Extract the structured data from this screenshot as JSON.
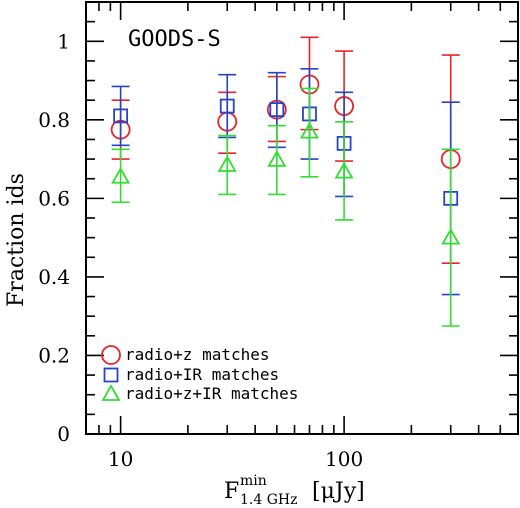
{
  "chart_data": {
    "type": "scatter",
    "title": "GOODS-S",
    "xlabel": {
      "main": "F",
      "sup": "min",
      "sub": "1.4 GHz",
      "unit": "[μJy]"
    },
    "ylabel": "Fraction ids",
    "xscale": "log",
    "xlim": [
      7,
      600
    ],
    "ylim": [
      0,
      1.1
    ],
    "xticks_major": [
      10,
      100
    ],
    "xtick_labels": [
      "10",
      "100"
    ],
    "xticks_minor": [
      8,
      9,
      20,
      30,
      40,
      50,
      60,
      70,
      80,
      90,
      200,
      300,
      400,
      500
    ],
    "yticks_major": [
      0,
      0.2,
      0.4,
      0.6,
      0.8,
      1.0
    ],
    "ytick_labels": [
      "0",
      "0.2",
      "0.4",
      "0.6",
      "0.8",
      "1"
    ],
    "yticks_minor_step": 0.05,
    "legend_position": "bottom-left",
    "series": [
      {
        "name": "radio+z matches",
        "marker": "circle",
        "color": "#e8262a",
        "points": [
          {
            "x": 10,
            "y": 0.775,
            "ylo": 0.7,
            "yhi": 0.85
          },
          {
            "x": 30,
            "y": 0.795,
            "ylo": 0.715,
            "yhi": 0.87
          },
          {
            "x": 50,
            "y": 0.826,
            "ylo": 0.745,
            "yhi": 0.91
          },
          {
            "x": 70,
            "y": 0.89,
            "ylo": 0.775,
            "yhi": 1.01
          },
          {
            "x": 100,
            "y": 0.835,
            "ylo": 0.695,
            "yhi": 0.975
          },
          {
            "x": 300,
            "y": 0.7,
            "ylo": 0.435,
            "yhi": 0.965
          }
        ]
      },
      {
        "name": "radio+IR matches",
        "marker": "square",
        "color": "#2545c8",
        "points": [
          {
            "x": 10,
            "y": 0.81,
            "ylo": 0.735,
            "yhi": 0.885
          },
          {
            "x": 30,
            "y": 0.835,
            "ylo": 0.755,
            "yhi": 0.915
          },
          {
            "x": 50,
            "y": 0.826,
            "ylo": 0.73,
            "yhi": 0.92
          },
          {
            "x": 70,
            "y": 0.815,
            "ylo": 0.7,
            "yhi": 0.93
          },
          {
            "x": 100,
            "y": 0.74,
            "ylo": 0.605,
            "yhi": 0.87
          },
          {
            "x": 300,
            "y": 0.6,
            "ylo": 0.355,
            "yhi": 0.845
          }
        ]
      },
      {
        "name": "radio+z+IR matches",
        "marker": "triangle",
        "color": "#33dd33",
        "points": [
          {
            "x": 10,
            "y": 0.655,
            "ylo": 0.59,
            "yhi": 0.725
          },
          {
            "x": 30,
            "y": 0.685,
            "ylo": 0.61,
            "yhi": 0.76
          },
          {
            "x": 50,
            "y": 0.698,
            "ylo": 0.61,
            "yhi": 0.785
          },
          {
            "x": 70,
            "y": 0.77,
            "ylo": 0.655,
            "yhi": 0.88
          },
          {
            "x": 100,
            "y": 0.668,
            "ylo": 0.545,
            "yhi": 0.795
          },
          {
            "x": 300,
            "y": 0.5,
            "ylo": 0.275,
            "yhi": 0.725
          }
        ]
      }
    ]
  }
}
